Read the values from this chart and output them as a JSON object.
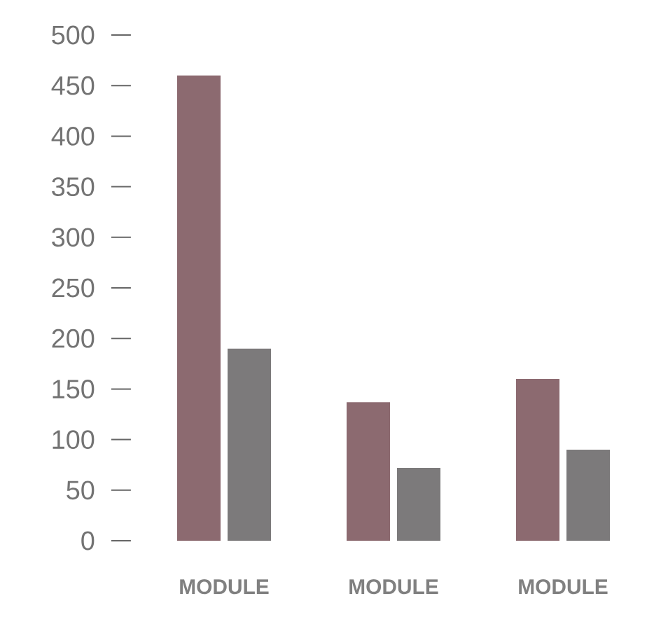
{
  "chart_data": {
    "type": "bar",
    "categories": [
      "MODULE",
      "MODULE",
      "MODULE"
    ],
    "series": [
      {
        "color": "#8c6a70",
        "values": [
          460,
          137,
          160
        ]
      },
      {
        "color": "#7c7a7b",
        "values": [
          190,
          72,
          90
        ]
      }
    ],
    "ylim": [
      0,
      500
    ],
    "yticks": [
      0,
      50,
      100,
      150,
      200,
      250,
      300,
      350,
      400,
      450,
      500
    ],
    "grid": false
  }
}
